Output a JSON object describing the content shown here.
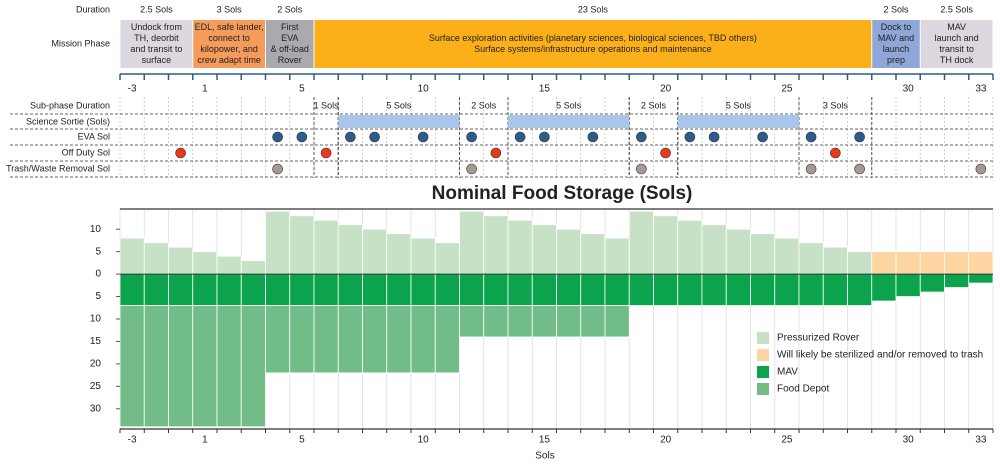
{
  "timeline": {
    "row_labels": [
      "Duration",
      "Mission Phase",
      "Sub-phase Duration",
      "Science Sortie (Sols)",
      "EVA Sol",
      "Off Duty Sol",
      "Trash/Waste Removal Sol"
    ],
    "phases": [
      {
        "duration": "2.5 Sols",
        "lines": [
          "Undock from",
          "TH, deorbit",
          "and transit to",
          "surface"
        ],
        "from": -3,
        "to": -1,
        "color": "#dcd6df"
      },
      {
        "duration": "3 Sols",
        "lines": [
          "EDL, safe lander,",
          "connect to",
          "kilopower, and",
          "crew adapt time"
        ],
        "from": 1,
        "to": 3,
        "color": "#f69c5b"
      },
      {
        "duration": "2 Sols",
        "lines": [
          "First",
          "EVA",
          "& off-load",
          "Rover"
        ],
        "from": 4,
        "to": 5,
        "color": "#a9a9ae"
      },
      {
        "duration": "23 Sols",
        "lines": [
          "Surface exploration activities (planetary sciences, biological sciences, TBD others)",
          "Surface systems/infrastructure operations and maintenance"
        ],
        "from": 6,
        "to": 28,
        "color": "#fbb019"
      },
      {
        "duration": "2 Sols",
        "lines": [
          "Dock to",
          "MAV and",
          "launch",
          "prep"
        ],
        "from": 29,
        "to": 30,
        "color": "#8ea6d8"
      },
      {
        "duration": "2.5 Sols",
        "lines": [
          "MAV",
          "launch and",
          "transit to",
          "TH dock"
        ],
        "from": 31,
        "to": 33,
        "color": "#dcd6df"
      }
    ],
    "subphases": [
      {
        "label": "1 Sols",
        "from": 6,
        "to": 6
      },
      {
        "label": "5 Sols",
        "from": 7,
        "to": 11
      },
      {
        "label": "2 Sols",
        "from": 12,
        "to": 13
      },
      {
        "label": "5 Sols",
        "from": 14,
        "to": 18
      },
      {
        "label": "2 Sols",
        "from": 19,
        "to": 20
      },
      {
        "label": "5 Sols",
        "from": 21,
        "to": 25
      },
      {
        "label": "3 Sols",
        "from": 26,
        "to": 28
      }
    ],
    "sorties": [
      {
        "from": 7,
        "to": 11
      },
      {
        "from": 14,
        "to": 18
      },
      {
        "from": 21,
        "to": 25
      }
    ],
    "sortie_color": "#a9c6ea",
    "eva": [
      4,
      5,
      7,
      8,
      10,
      12,
      14,
      15,
      17,
      19,
      21,
      22,
      24,
      26,
      28
    ],
    "eva_color": "#2b5d8c",
    "off_duty": [
      -1,
      6,
      13,
      20,
      27
    ],
    "off_duty_color": "#e8391d",
    "trash": [
      4,
      12,
      19,
      26,
      28,
      33
    ],
    "trash_color": "#a59a90"
  },
  "chart_data": {
    "type": "bar",
    "stacked": true,
    "title": "Nominal Food Storage (Sols)",
    "x_label": "Sols",
    "categories": [
      "-3",
      null,
      null,
      "1",
      null,
      null,
      null,
      "5",
      null,
      null,
      null,
      null,
      "10",
      null,
      null,
      null,
      null,
      "15",
      null,
      null,
      null,
      null,
      "20",
      null,
      null,
      null,
      null,
      "25",
      null,
      null,
      null,
      null,
      "30",
      null,
      null,
      "33"
    ],
    "series": [
      {
        "name": "Pressurized Rover",
        "color": "#c6e1c6",
        "values": [
          8,
          7,
          6,
          5,
          4,
          3,
          14,
          13,
          12,
          11,
          10,
          9,
          8,
          7,
          14,
          13,
          12,
          11,
          10,
          9,
          8,
          14,
          13,
          12,
          11,
          10,
          9,
          8,
          7,
          6,
          5,
          null,
          null,
          null,
          null,
          null
        ]
      },
      {
        "name": "Will likely be sterilized and/or removed to trash",
        "color": "#fdd5a0",
        "values": [
          null,
          null,
          null,
          null,
          null,
          null,
          null,
          null,
          null,
          null,
          null,
          null,
          null,
          null,
          null,
          null,
          null,
          null,
          null,
          null,
          null,
          null,
          null,
          null,
          null,
          null,
          null,
          null,
          null,
          null,
          null,
          5,
          5,
          5,
          5,
          5
        ]
      },
      {
        "name": "MAV",
        "color": "#0ba44c",
        "values": [
          -7,
          -7,
          -7,
          -7,
          -7,
          -7,
          -7,
          -7,
          -7,
          -7,
          -7,
          -7,
          -7,
          -7,
          -7,
          -7,
          -7,
          -7,
          -7,
          -7,
          -7,
          -7,
          -7,
          -7,
          -7,
          -7,
          -7,
          -7,
          -7,
          -7,
          -7,
          -6,
          -5,
          -4,
          -3,
          -2
        ]
      },
      {
        "name": "Food Depot",
        "color": "#72bd87",
        "values": [
          -27,
          -27,
          -27,
          -27,
          -27,
          -27,
          -15,
          -15,
          -15,
          -15,
          -15,
          -15,
          -15,
          -15,
          -7,
          -7,
          -7,
          -7,
          -7,
          -7,
          -7,
          null,
          null,
          null,
          null,
          null,
          null,
          null,
          null,
          null,
          null,
          null,
          null,
          null,
          null,
          null
        ]
      }
    ],
    "ylim": [
      -34.5,
      14.5
    ],
    "yticks": [
      {
        "value": -30,
        "label": "30"
      },
      {
        "value": -25,
        "label": "25"
      },
      {
        "value": -20,
        "label": "20"
      },
      {
        "value": -15,
        "label": "15"
      },
      {
        "value": -10,
        "label": "10"
      },
      {
        "value": -5,
        "label": "5"
      },
      0,
      5,
      10
    ],
    "legend": "right"
  }
}
